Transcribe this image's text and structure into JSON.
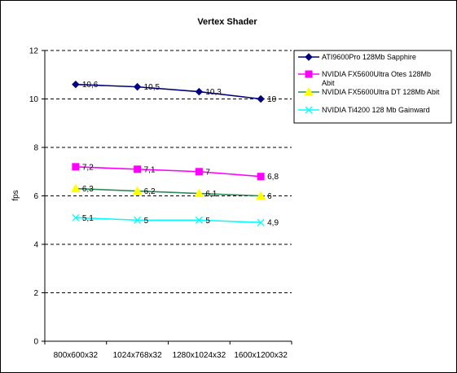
{
  "chart_data": {
    "type": "line",
    "title": "Vertex Shader",
    "xlabel": "",
    "ylabel": "fps",
    "ylim": [
      0,
      12
    ],
    "yticks": [
      "0",
      "2",
      "4",
      "6",
      "8",
      "10",
      "12"
    ],
    "grid": "dashed horizontal",
    "legend_position": "right",
    "categories": [
      "800x600x32",
      "1024x768x32",
      "1280x1024x32",
      "1600x1200x32"
    ],
    "series": [
      {
        "name": "ATI9600Pro 128Mb Sapphire",
        "color": "#000080",
        "marker": "diamond",
        "values": [
          10.6,
          10.5,
          10.3,
          10
        ],
        "labels": [
          "10,6",
          "10,5",
          "10,3",
          "10"
        ]
      },
      {
        "name": "NVIDIA FX5600Ultra Otes 128Mb Abit",
        "color": "#FF00FF",
        "marker": "square",
        "values": [
          7.2,
          7.1,
          7,
          6.8
        ],
        "labels": [
          "7,2",
          "7,1",
          "7",
          "6,8"
        ]
      },
      {
        "name": "NVIDIA FX5600Ultra DT 128Mb Abit",
        "color": "#2E8B57",
        "marker_color": "#FFFF00",
        "marker": "triangle",
        "values": [
          6.3,
          6.2,
          6.1,
          6
        ],
        "labels": [
          "6,3",
          "6,2",
          "6,1",
          "6"
        ]
      },
      {
        "name": "NVIDIA Ti4200 128 Mb Gainward",
        "color": "#00FFFF",
        "marker": "x",
        "values": [
          5.1,
          5,
          5,
          4.9
        ],
        "labels": [
          "5,1",
          "5",
          "5",
          "4,9"
        ]
      }
    ]
  }
}
